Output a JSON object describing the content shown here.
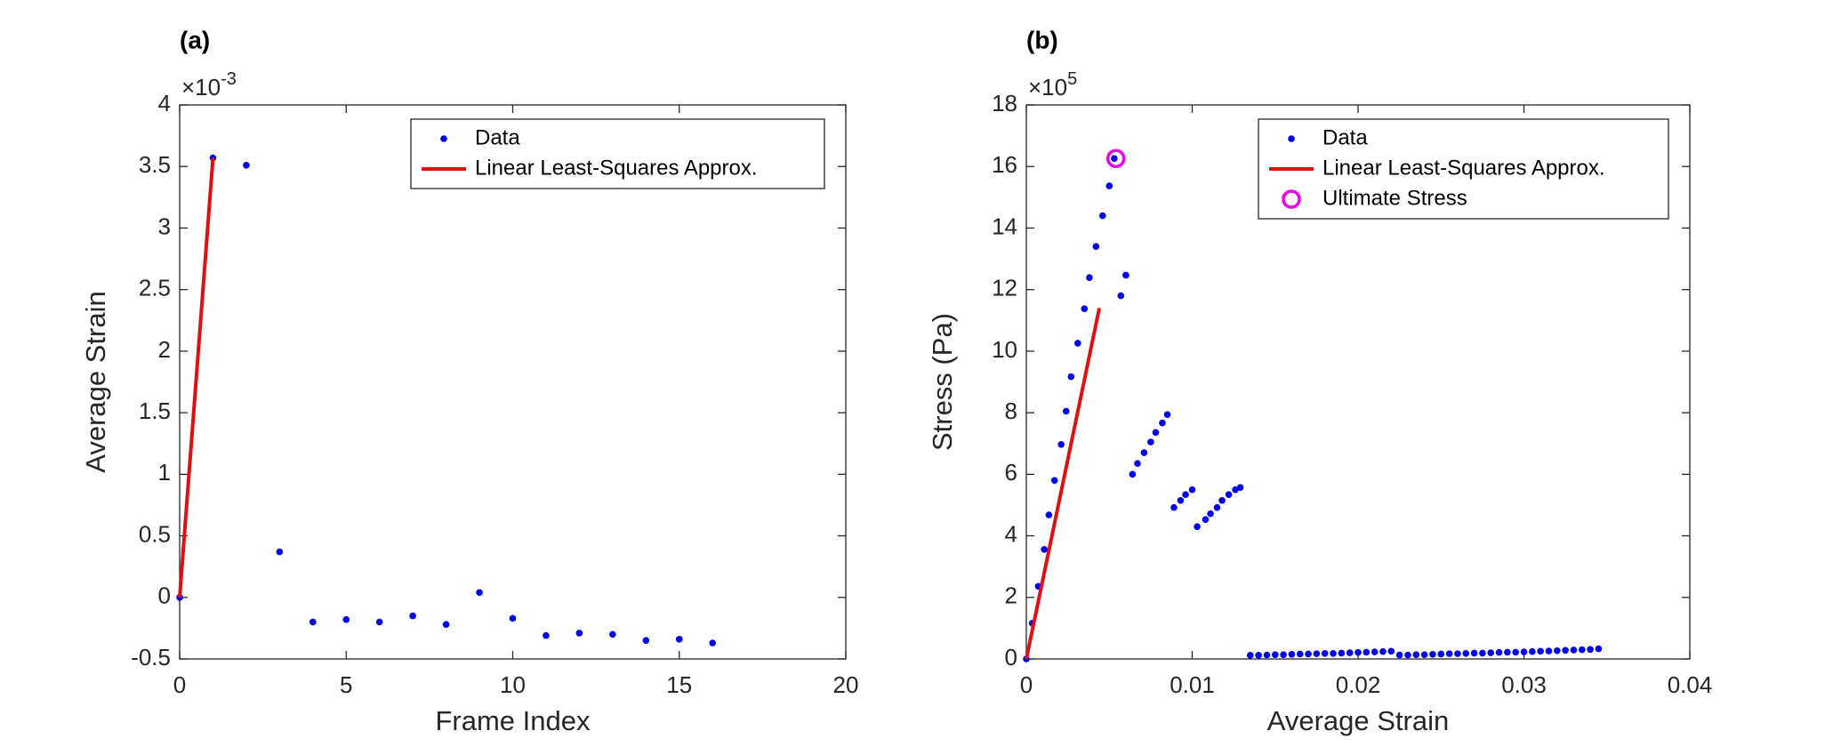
{
  "chart_data": [
    {
      "type": "scatter",
      "title": "(a)",
      "xlabel": "Frame Index",
      "ylabel": "Average Strain",
      "y_multiplier": {
        "base": "×10",
        "exponent": "-3"
      },
      "xlim": [
        0,
        20
      ],
      "xticks": [
        0,
        5,
        10,
        15,
        20
      ],
      "ylim": [
        -0.5,
        4
      ],
      "yticks": [
        -0.5,
        0,
        0.5,
        1,
        1.5,
        2,
        2.5,
        3,
        3.5,
        4
      ],
      "legend": "top-right",
      "series": [
        {
          "name": "Data",
          "mode": "markers",
          "color": "#0000ee",
          "x": [
            0,
            1,
            2,
            3,
            4,
            5,
            6,
            7,
            8,
            9,
            10,
            11,
            12,
            13,
            14,
            15,
            16
          ],
          "values": [
            0,
            3.57,
            3.51,
            0.37,
            -0.2,
            -0.18,
            -0.2,
            -0.15,
            -0.22,
            0.04,
            -0.17,
            -0.31,
            -0.29,
            -0.3,
            -0.35,
            -0.34,
            -0.37
          ]
        },
        {
          "name": "Linear Least-Squares Approx.",
          "mode": "line",
          "color": "#e01010",
          "x": [
            0,
            1
          ],
          "values": [
            0,
            3.57
          ]
        }
      ]
    },
    {
      "type": "scatter",
      "title": "(b)",
      "xlabel": "Average Strain",
      "ylabel": "Stress (Pa)",
      "y_multiplier": {
        "base": "×10",
        "exponent": "5"
      },
      "xlim": [
        0,
        0.04
      ],
      "xticks": [
        0,
        0.01,
        0.02,
        0.03,
        0.04
      ],
      "ylim": [
        0,
        18
      ],
      "yticks": [
        0,
        2,
        4,
        6,
        8,
        10,
        12,
        14,
        16,
        18
      ],
      "legend": "top-right",
      "series": [
        {
          "name": "Data",
          "mode": "markers",
          "color": "#0000ee",
          "x": [
            0,
            0.00036,
            0.00072,
            0.00108,
            0.00136,
            0.0017,
            0.0021,
            0.0024,
            0.0027,
            0.0031,
            0.0035,
            0.0038,
            0.0042,
            0.0046,
            0.005,
            0.0053,
            0.0057,
            0.006,
            0.0064,
            0.0067,
            0.0071,
            0.0075,
            0.0078,
            0.0082,
            0.0085,
            0.0089,
            0.0093,
            0.0096,
            0.01,
            0.0103,
            0.0108,
            0.0111,
            0.0115,
            0.0118,
            0.0122,
            0.0126,
            0.0129,
            0.0135,
            0.014,
            0.0145,
            0.015,
            0.0155,
            0.016,
            0.0165,
            0.017,
            0.0175,
            0.018,
            0.0185,
            0.019,
            0.0195,
            0.02,
            0.0205,
            0.021,
            0.0215,
            0.022,
            0.0225,
            0.023,
            0.0235,
            0.024,
            0.0245,
            0.025,
            0.0255,
            0.026,
            0.0265,
            0.027,
            0.0275,
            0.028,
            0.0285,
            0.029,
            0.0295,
            0.03,
            0.0305,
            0.031,
            0.0315,
            0.032,
            0.0325,
            0.033,
            0.0335,
            0.034,
            0.0345
          ],
          "values": [
            0,
            1.16,
            2.36,
            3.56,
            4.68,
            5.8,
            6.97,
            8.05,
            9.17,
            10.26,
            11.38,
            12.39,
            13.4,
            14.4,
            15.37,
            16.26,
            11.8,
            12.47,
            6.0,
            6.35,
            6.7,
            7.05,
            7.36,
            7.67,
            7.94,
            4.92,
            5.15,
            5.34,
            5.5,
            4.3,
            4.53,
            4.72,
            4.92,
            5.15,
            5.34,
            5.5,
            5.57,
            0.12,
            0.12,
            0.13,
            0.14,
            0.14,
            0.15,
            0.16,
            0.16,
            0.17,
            0.18,
            0.18,
            0.19,
            0.2,
            0.21,
            0.22,
            0.23,
            0.24,
            0.25,
            0.13,
            0.13,
            0.14,
            0.14,
            0.15,
            0.16,
            0.17,
            0.17,
            0.18,
            0.19,
            0.19,
            0.2,
            0.21,
            0.22,
            0.22,
            0.23,
            0.24,
            0.25,
            0.26,
            0.27,
            0.28,
            0.29,
            0.3,
            0.31,
            0.33
          ]
        },
        {
          "name": "Linear Least-Squares Approx.",
          "mode": "line",
          "color": "#e01010",
          "x": [
            0,
            0.0044
          ],
          "values": [
            0,
            11.4
          ]
        },
        {
          "name": "Ultimate Stress",
          "mode": "open-circle",
          "color": "#ee00ee",
          "x": [
            0.0054
          ],
          "values": [
            16.26
          ]
        }
      ]
    }
  ]
}
